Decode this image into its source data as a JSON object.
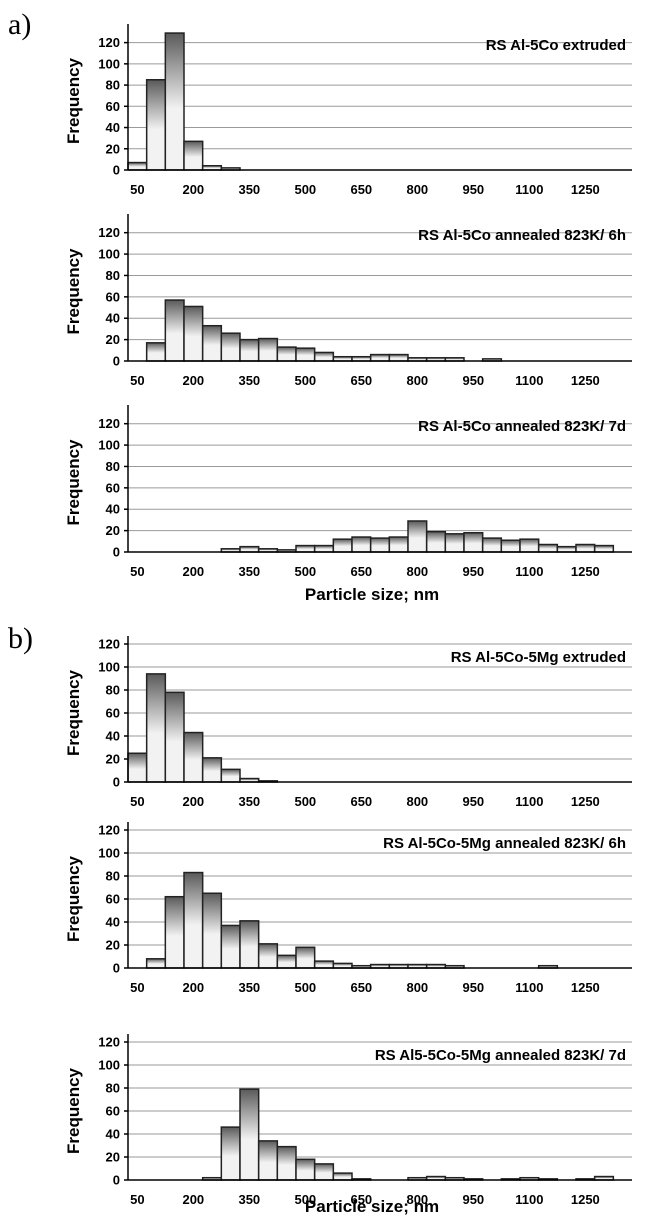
{
  "figure": {
    "panel_labels": [
      "a)",
      "b)"
    ]
  },
  "chart_data": [
    {
      "type": "bar",
      "panel": "a",
      "title": "RS Al-5Co extruded",
      "ylabel": "Frequency",
      "xlabel": "",
      "ylim": [
        0,
        130
      ],
      "yticks": [
        0,
        20,
        40,
        60,
        80,
        100,
        120
      ],
      "xticks": [
        "50",
        "200",
        "350",
        "500",
        "650",
        "800",
        "950",
        "1100",
        "1250"
      ],
      "bin_width": 50,
      "x_start": 25,
      "values": [
        7,
        85,
        129,
        27,
        4,
        2,
        0,
        0,
        0,
        0,
        0,
        0,
        0,
        0,
        0,
        0,
        0,
        0,
        0,
        0,
        0,
        0,
        0,
        0,
        0,
        0,
        0
      ],
      "gradient": [
        "#5a5a5a",
        "#f2f2f2"
      ]
    },
    {
      "type": "bar",
      "panel": "a",
      "title": "RS Al-5Co annealed 823K/ 6h",
      "ylabel": "Frequency",
      "xlabel": "",
      "ylim": [
        0,
        130
      ],
      "yticks": [
        0,
        20,
        40,
        60,
        80,
        100,
        120
      ],
      "xticks": [
        "50",
        "200",
        "350",
        "500",
        "650",
        "800",
        "950",
        "1100",
        "1250"
      ],
      "bin_width": 50,
      "x_start": 25,
      "values": [
        0,
        17,
        57,
        51,
        33,
        26,
        20,
        21,
        13,
        12,
        8,
        4,
        4,
        6,
        6,
        3,
        3,
        3,
        0,
        2,
        0,
        0,
        0,
        0,
        0,
        0,
        0
      ],
      "gradient": [
        "#5a5a5a",
        "#f2f2f2"
      ]
    },
    {
      "type": "bar",
      "panel": "a",
      "title": "RS Al-5Co annealed 823K/ 7d",
      "ylabel": "Frequency",
      "xlabel": "Particle size; nm",
      "ylim": [
        0,
        130
      ],
      "yticks": [
        0,
        20,
        40,
        60,
        80,
        100,
        120
      ],
      "xticks": [
        "50",
        "200",
        "350",
        "500",
        "650",
        "800",
        "950",
        "1100",
        "1250"
      ],
      "bin_width": 50,
      "x_start": 25,
      "values": [
        0,
        0,
        0,
        0,
        0,
        3,
        5,
        3,
        2,
        6,
        6,
        12,
        14,
        13,
        14,
        29,
        19,
        17,
        18,
        13,
        11,
        12,
        7,
        5,
        7,
        6,
        0
      ],
      "gradient": [
        "#5a5a5a",
        "#f2f2f2"
      ]
    },
    {
      "type": "bar",
      "panel": "b",
      "title": "RS Al-5Co-5Mg extruded",
      "ylabel": "Frequency",
      "xlabel": "",
      "ylim": [
        0,
        120
      ],
      "yticks": [
        0,
        20,
        40,
        60,
        80,
        100,
        120
      ],
      "xticks": [
        "50",
        "200",
        "350",
        "500",
        "650",
        "800",
        "950",
        "1100",
        "1250"
      ],
      "bin_width": 50,
      "x_start": 25,
      "values": [
        25,
        94,
        78,
        43,
        21,
        11,
        3,
        1,
        0,
        0,
        0,
        0,
        0,
        0,
        0,
        0,
        0,
        0,
        0,
        0,
        0,
        0,
        0,
        0,
        0,
        0,
        0
      ],
      "gradient": [
        "#5a5a5a",
        "#f2f2f2"
      ]
    },
    {
      "type": "bar",
      "panel": "b",
      "title": "RS Al-5Co-5Mg annealed 823K/ 6h",
      "ylabel": "Frequency",
      "xlabel": "",
      "ylim": [
        0,
        120
      ],
      "yticks": [
        0,
        20,
        40,
        60,
        80,
        100,
        120
      ],
      "xticks": [
        "50",
        "200",
        "350",
        "500",
        "650",
        "800",
        "950",
        "1100",
        "1250"
      ],
      "bin_width": 50,
      "x_start": 25,
      "values": [
        0,
        8,
        62,
        83,
        65,
        37,
        41,
        21,
        11,
        18,
        6,
        4,
        2,
        3,
        3,
        3,
        3,
        2,
        0,
        0,
        0,
        0,
        2,
        0,
        0,
        0,
        0
      ],
      "gradient": [
        "#5a5a5a",
        "#f2f2f2"
      ]
    },
    {
      "type": "bar",
      "panel": "b",
      "title": "RS Al5-5Co-5Mg annealed 823K/ 7d",
      "ylabel": "Frequency",
      "xlabel": "Particle size; nm",
      "ylim": [
        0,
        120
      ],
      "yticks": [
        0,
        20,
        40,
        60,
        80,
        100,
        120
      ],
      "xticks": [
        "50",
        "200",
        "350",
        "500",
        "650",
        "800",
        "950",
        "1100",
        "1250"
      ],
      "bin_width": 50,
      "x_start": 25,
      "values": [
        0,
        0,
        0,
        0,
        2,
        46,
        79,
        34,
        29,
        18,
        14,
        6,
        1,
        0,
        0,
        2,
        3,
        2,
        1,
        0,
        1,
        2,
        1,
        0,
        1,
        3,
        0
      ],
      "gradient": [
        "#5a5a5a",
        "#f2f2f2"
      ]
    }
  ]
}
